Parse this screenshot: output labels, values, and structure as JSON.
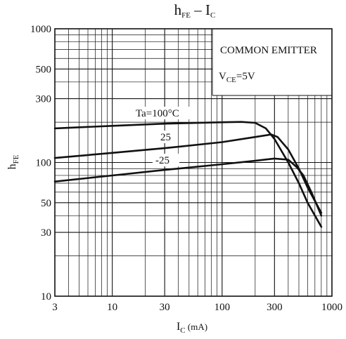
{
  "chart_data": {
    "type": "line",
    "title": {
      "main": "h",
      "main_sub": "FE",
      "sep": " – ",
      "var": "I",
      "var_sub": "C"
    },
    "xlabel": {
      "main": "I",
      "sub": "C",
      "unit": " (mA)"
    },
    "ylabel": {
      "main": "h",
      "sub": "FE"
    },
    "x_scale": "log",
    "y_scale": "log",
    "xlim": [
      3,
      1000
    ],
    "ylim": [
      10,
      1000
    ],
    "x_ticks": [
      3,
      10,
      30,
      100,
      300,
      1000
    ],
    "x_tick_labels": [
      "3",
      "10",
      "30",
      "100",
      "300",
      "1000"
    ],
    "y_ticks": [
      10,
      30,
      50,
      100,
      300,
      500,
      1000
    ],
    "y_tick_labels": [
      "10",
      "30",
      "50",
      "100",
      "300",
      "500",
      "1000"
    ],
    "grid": true,
    "annotation": {
      "line1": "COMMON EMITTER",
      "line2_main": "V",
      "line2_sub": "CE",
      "line2_rest": "=5V"
    },
    "series": [
      {
        "name": "Ta=100°C",
        "points": [
          [
            3,
            180
          ],
          [
            10,
            188
          ],
          [
            30,
            195
          ],
          [
            100,
            200
          ],
          [
            150,
            201
          ],
          [
            200,
            198
          ],
          [
            250,
            180
          ],
          [
            300,
            150
          ],
          [
            400,
            100
          ],
          [
            500,
            70
          ],
          [
            600,
            50
          ],
          [
            800,
            33
          ]
        ]
      },
      {
        "name": "25",
        "points": [
          [
            3,
            108
          ],
          [
            10,
            118
          ],
          [
            30,
            128
          ],
          [
            100,
            142
          ],
          [
            200,
            155
          ],
          [
            280,
            162
          ],
          [
            320,
            155
          ],
          [
            400,
            125
          ],
          [
            500,
            90
          ],
          [
            600,
            65
          ],
          [
            800,
            42
          ]
        ]
      },
      {
        "name": "-25",
        "points": [
          [
            3,
            72
          ],
          [
            10,
            80
          ],
          [
            30,
            88
          ],
          [
            100,
            97
          ],
          [
            200,
            103
          ],
          [
            300,
            107
          ],
          [
            400,
            105
          ],
          [
            480,
            92
          ],
          [
            550,
            80
          ],
          [
            650,
            60
          ],
          [
            800,
            40
          ]
        ]
      }
    ]
  }
}
